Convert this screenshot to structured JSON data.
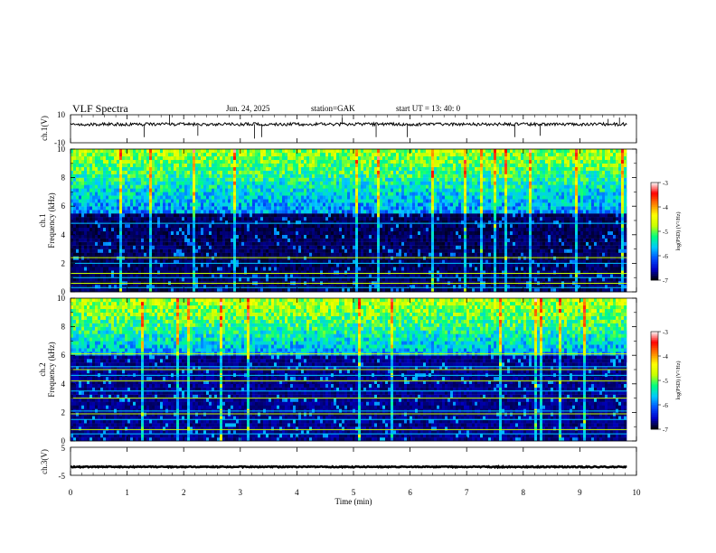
{
  "chart_data": {
    "type": "heatmap",
    "header": {
      "title": "VLF  Spectra",
      "date": "Jun. 24, 2025",
      "station": "station=GAK",
      "start": "start  UT  =   13: 40: 0"
    },
    "time_axis": {
      "label": "Time  (min)",
      "ticks": [
        "0",
        "1",
        "2",
        "3",
        "4",
        "5",
        "6",
        "7",
        "8",
        "9",
        "10"
      ],
      "range": [
        0,
        10
      ],
      "data_end": 9.83
    },
    "panels": [
      {
        "kind": "waveform",
        "ylabel": "ch.1(V)",
        "yticks": [
          "10",
          "-10"
        ],
        "ylim": [
          -10,
          10
        ],
        "baseline": 3.2,
        "spikes": [
          {
            "t": 1.3,
            "v": -6
          },
          {
            "t": 1.75,
            "v": 10
          },
          {
            "t": 2.25,
            "v": -5
          },
          {
            "t": 3.25,
            "v": -7
          },
          {
            "t": 3.38,
            "v": -6
          },
          {
            "t": 4.8,
            "v": 8
          },
          {
            "t": 5.4,
            "v": -6
          },
          {
            "t": 5.95,
            "v": -6
          },
          {
            "t": 7.85,
            "v": -6
          },
          {
            "t": 8.3,
            "v": -5
          },
          {
            "t": 9.5,
            "v": 7
          },
          {
            "t": 9.7,
            "v": 8
          }
        ]
      },
      {
        "kind": "spectrogram",
        "ylabel_channel": "ch.1",
        "ylabel": "Frequency  (kHz)",
        "yticks": [
          "0",
          "2",
          "4",
          "6",
          "8",
          "10"
        ],
        "ylim": [
          0,
          10
        ],
        "quiet_top_khz": 5.5,
        "noise_floor_log": -6.8,
        "broadband_top_log": -4.9,
        "hlines_khz": [
          0.3,
          0.6,
          1.0,
          1.3,
          2.0,
          2.4,
          4.8
        ]
      },
      {
        "kind": "spectrogram",
        "ylabel_channel": "ch.2",
        "ylabel": "Frequency  (kHz)",
        "yticks": [
          "0",
          "2",
          "4",
          "6",
          "8",
          "10"
        ],
        "ylim": [
          0,
          10
        ],
        "quiet_top_khz": 6.0,
        "noise_floor_log": -6.7,
        "broadband_top_log": -5.0,
        "hlines_khz": [
          0.5,
          0.8,
          1.5,
          1.9,
          2.1,
          3.0,
          3.5,
          4.2,
          4.6,
          5.0,
          5.2,
          6.1
        ]
      },
      {
        "kind": "waveform",
        "ylabel": "ch.3(V)",
        "yticks": [
          "5",
          "-5"
        ],
        "ylim": [
          -5,
          5
        ],
        "baseline": -2
      }
    ],
    "colorbar": {
      "label": "log(PSD) (V²/Hz)",
      "ticks": [
        "-3",
        "-4",
        "-5",
        "-6",
        "-7"
      ],
      "range": [
        -7,
        -3
      ],
      "colors": [
        "#000000",
        "#0000c8",
        "#0050ff",
        "#00c8ff",
        "#00ff80",
        "#c8ff00",
        "#ffff00",
        "#ff8000",
        "#ff0000",
        "#ffffff"
      ]
    }
  }
}
